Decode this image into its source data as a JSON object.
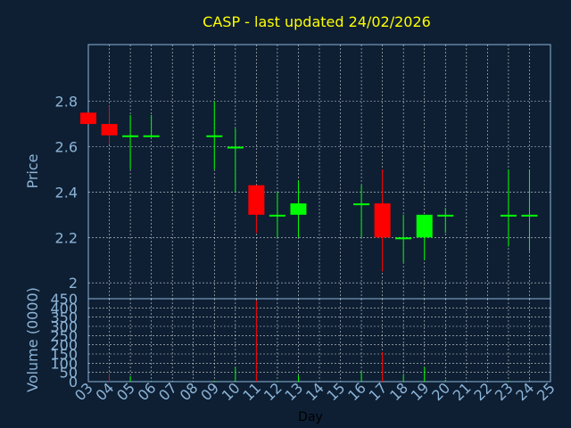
{
  "colors": {
    "background": "#0e1f33",
    "title": "#ffff00",
    "axis_text": "#8cb4d8",
    "grid": "#ffffff",
    "up": "#00ff00",
    "down": "#ff0000"
  },
  "chart_data": [
    {
      "type": "candlestick",
      "title": "CASP - last updated 24/02/2026",
      "ylabel": "Price",
      "ylim": [
        1.93,
        3.05
      ],
      "yticks": [
        2,
        2.2,
        2.4,
        2.6,
        2.8
      ],
      "grid": true,
      "x": [
        "03",
        "04",
        "05",
        "06",
        "09",
        "10",
        "11",
        "12",
        "13",
        "16",
        "17",
        "18",
        "19",
        "20",
        "23",
        "24"
      ],
      "open": [
        2.75,
        2.7,
        2.65,
        2.65,
        2.65,
        2.6,
        2.43,
        2.3,
        2.3,
        2.35,
        2.35,
        2.2,
        2.2,
        2.3,
        2.3,
        2.3
      ],
      "high": [
        2.75,
        2.78,
        2.74,
        2.74,
        2.8,
        2.68,
        2.43,
        2.4,
        2.45,
        2.43,
        2.5,
        2.3,
        2.3,
        2.33,
        2.5,
        2.5
      ],
      "low": [
        2.7,
        2.61,
        2.5,
        2.65,
        2.5,
        2.4,
        2.22,
        2.2,
        2.2,
        2.2,
        2.05,
        2.09,
        2.1,
        2.22,
        2.16,
        2.14
      ],
      "close": [
        2.7,
        2.65,
        2.65,
        2.65,
        2.65,
        2.6,
        2.3,
        2.3,
        2.35,
        2.35,
        2.2,
        2.2,
        2.3,
        2.3,
        2.3,
        2.3
      ]
    },
    {
      "type": "bar",
      "ylabel": "Volume (0000)",
      "xlabel": "Day",
      "ylim": [
        0,
        450
      ],
      "yticks": [
        0,
        50,
        100,
        150,
        200,
        250,
        300,
        350,
        400,
        450
      ],
      "categories": [
        "03",
        "04",
        "05",
        "06",
        "07",
        "08",
        "09",
        "10",
        "11",
        "12",
        "13",
        "14",
        "15",
        "16",
        "17",
        "18",
        "19",
        "20",
        "21",
        "22",
        "23",
        "24",
        "25"
      ],
      "values": [
        2,
        45,
        30,
        5,
        0,
        0,
        5,
        80,
        440,
        5,
        35,
        0,
        0,
        55,
        160,
        35,
        80,
        10,
        0,
        0,
        5,
        8,
        0
      ]
    }
  ]
}
